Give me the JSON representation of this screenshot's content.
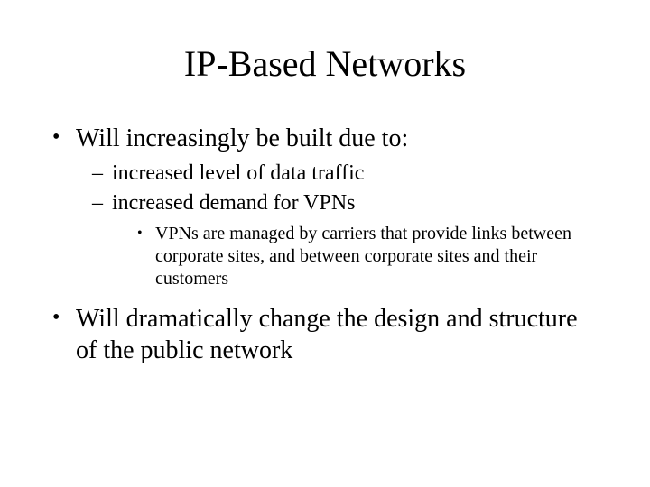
{
  "slide": {
    "background_color": "#ffffff",
    "text_color": "#000000",
    "font_family": "Times New Roman",
    "title": {
      "text": "IP-Based Networks",
      "fontsize_pt": 40,
      "align": "center",
      "weight": "normal"
    },
    "bullets": [
      {
        "text": "Will increasingly be built due to:",
        "fontsize_pt": 28,
        "marker": "•",
        "children": [
          {
            "text": "increased level of data traffic",
            "fontsize_pt": 24,
            "marker": "–"
          },
          {
            "text": "increased demand for VPNs",
            "fontsize_pt": 24,
            "marker": "–",
            "children": [
              {
                "text": "VPNs are managed by carriers that provide links between corporate sites, and between corporate sites and their customers",
                "fontsize_pt": 20,
                "marker": "•"
              }
            ]
          }
        ]
      },
      {
        "text": "Will dramatically change the design and structure of the public network",
        "fontsize_pt": 28,
        "marker": "•"
      }
    ]
  }
}
